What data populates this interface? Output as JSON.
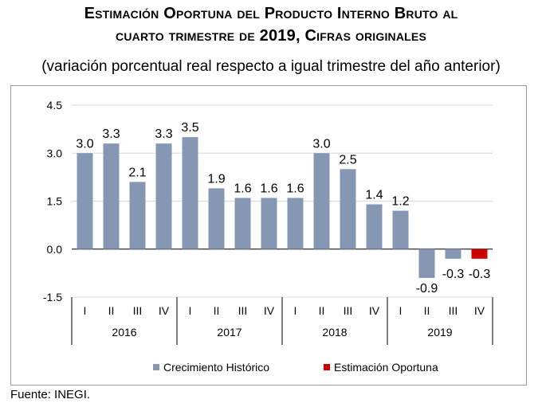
{
  "title_line1": "Estimación Oportuna del Producto Interno Bruto al",
  "title_line2": "cuarto trimestre de 2019, Cifras originales",
  "subtitle": "(variación porcentual real respecto a igual trimestre del año anterior)",
  "source": "Fuente: INEGI.",
  "colors": {
    "historico": "#8597b3",
    "oportuna": "#cc0000"
  },
  "chart_data": {
    "type": "bar",
    "ylim": [
      -1.5,
      4.5
    ],
    "yticks": [
      "4.5",
      "3.0",
      "1.5",
      "0.0",
      "-1.5"
    ],
    "ytick_values": [
      4.5,
      3.0,
      1.5,
      0.0,
      -1.5
    ],
    "grid": true,
    "legend_position": "bottom",
    "years": [
      {
        "label": "2016",
        "quarters": [
          "I",
          "II",
          "III",
          "IV"
        ]
      },
      {
        "label": "2017",
        "quarters": [
          "I",
          "II",
          "III",
          "IV"
        ]
      },
      {
        "label": "2018",
        "quarters": [
          "I",
          "II",
          "III",
          "IV"
        ]
      },
      {
        "label": "2019",
        "quarters": [
          "I",
          "II",
          "III",
          "IV"
        ]
      }
    ],
    "series": [
      {
        "name": "Crecimiento  Histórico",
        "color": "#8597b3",
        "values": [
          3.0,
          3.3,
          2.1,
          3.3,
          3.5,
          1.9,
          1.6,
          1.6,
          1.6,
          3.0,
          2.5,
          1.4,
          1.2,
          -0.9,
          -0.3,
          null
        ]
      },
      {
        "name": "Estimación Oportuna",
        "color": "#cc0000",
        "values": [
          null,
          null,
          null,
          null,
          null,
          null,
          null,
          null,
          null,
          null,
          null,
          null,
          null,
          null,
          null,
          -0.3
        ]
      }
    ],
    "data_labels": [
      "3.0",
      "3.3",
      "2.1",
      "3.3",
      "3.5",
      "1.9",
      "1.6",
      "1.6",
      "1.6",
      "3.0",
      "2.5",
      "1.4",
      "1.2",
      "-0.9",
      "-0.3",
      "-0.3"
    ]
  }
}
